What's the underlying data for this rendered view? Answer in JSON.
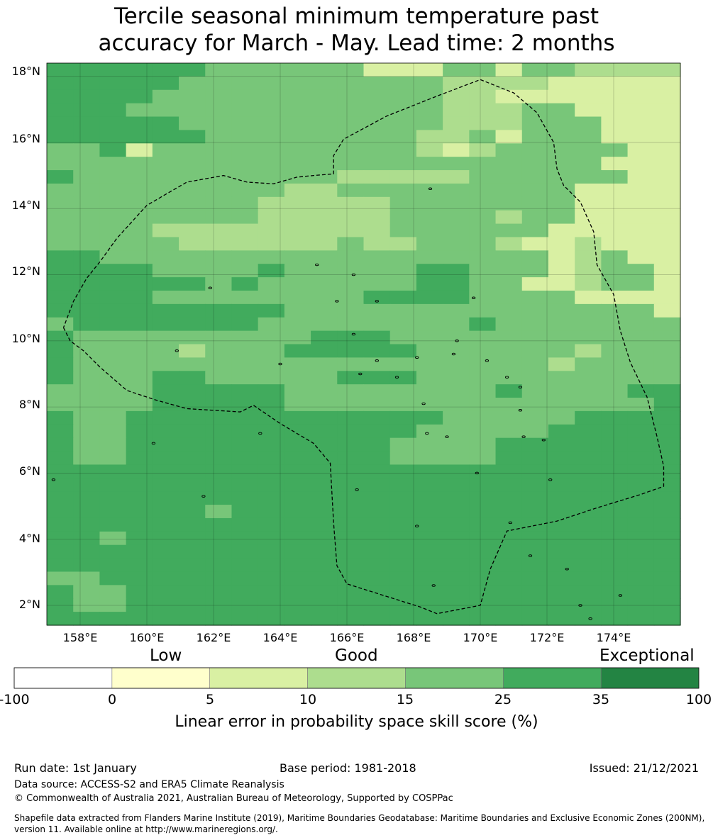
{
  "title": {
    "line1": "Tercile seasonal minimum temperature past",
    "line2": "accuracy for March - May. Lead time: 2 months"
  },
  "map": {
    "lon_range": [
      157,
      176
    ],
    "lat_range": [
      1.4,
      18.4
    ],
    "cell_size_deg": 0.833,
    "lat_ticks": [
      "18°N",
      "16°N",
      "14°N",
      "12°N",
      "10°N",
      "8°N",
      "6°N",
      "4°N",
      "2°N"
    ],
    "lon_ticks": [
      "158°E",
      "160°E",
      "162°E",
      "164°E",
      "166°E",
      "168°E",
      "170°E",
      "172°E",
      "174°E"
    ],
    "grid_rows_top_to_bottom": [
      "555555444444222442443333",
      "555554444444444333322222",
      "555544444444444332222222",
      "555444444444444333442222",
      "555554444444444333444222",
      "555555444444443342444222",
      "445244444444443234444422",
      "444444444444444444444222",
      "544444444443333344444422",
      "444444444334444444442222",
      "444444443333344444442222",
      "444444443333344443442222",
      "444433333333344444422222",
      "444443333334334443223222",
      "554444444444444444423422",
      "555544445444445544423442",
      "555555454444445544223442",
      "555544444444555544442222",
      "555555555444444444444442",
      "455555554444444454444444",
      "544444444455544444444444",
      "544443444555554444443444",
      "544444444444444444434444",
      "544455444445554444444444",
      "444455555444444445444455",
      "444455555444444444444445",
      "544555555555555444445555",
      "544555555555554444455555",
      "544555555555544445555555",
      "544555555555544445555555",
      "555555555555555555555555",
      "555555555555555555555555",
      "555555555555555555555555",
      "555555455555555555555555",
      "555555555555555555555555",
      "554555555555555555555555",
      "555555555555555555555555",
      "555555555555555555555555",
      "445555555555555555555555",
      "544555555555555555555555",
      "544555555555555555555555",
      "555555555555555555555555"
    ],
    "boundary_lonlat": [
      [
        157.5,
        10.4
      ],
      [
        157.7,
        10.0
      ],
      [
        158.1,
        9.7
      ],
      [
        158.6,
        9.2
      ],
      [
        159.4,
        8.5
      ],
      [
        160.3,
        8.2
      ],
      [
        161.2,
        7.95
      ],
      [
        162.8,
        7.85
      ],
      [
        163.2,
        8.05
      ],
      [
        164.0,
        7.5
      ],
      [
        165.0,
        6.9
      ],
      [
        165.5,
        6.3
      ],
      [
        165.6,
        4.5
      ],
      [
        165.7,
        3.2
      ],
      [
        166.0,
        2.65
      ],
      [
        167.1,
        2.3
      ],
      [
        168.2,
        1.95
      ],
      [
        168.7,
        1.75
      ],
      [
        170.0,
        2.0
      ],
      [
        170.3,
        3.1
      ],
      [
        170.8,
        4.25
      ],
      [
        172.3,
        4.55
      ],
      [
        173.5,
        4.95
      ],
      [
        174.8,
        5.35
      ],
      [
        175.5,
        5.6
      ],
      [
        175.5,
        6.2
      ],
      [
        175.3,
        7.1
      ],
      [
        175.0,
        8.3
      ],
      [
        174.5,
        9.35
      ],
      [
        174.2,
        10.3
      ],
      [
        174.0,
        11.4
      ],
      [
        173.5,
        12.3
      ],
      [
        173.4,
        13.3
      ],
      [
        173.0,
        14.2
      ],
      [
        172.5,
        14.7
      ],
      [
        172.3,
        15.2
      ],
      [
        172.2,
        16.0
      ],
      [
        171.7,
        16.9
      ],
      [
        171.0,
        17.5
      ],
      [
        170.0,
        17.9
      ],
      [
        168.7,
        17.4
      ],
      [
        167.2,
        16.8
      ],
      [
        165.9,
        16.1
      ],
      [
        165.6,
        15.6
      ],
      [
        165.6,
        15.05
      ],
      [
        165.0,
        15.0
      ],
      [
        164.5,
        14.95
      ],
      [
        163.8,
        14.75
      ],
      [
        163.0,
        14.8
      ],
      [
        162.3,
        15.0
      ],
      [
        161.2,
        14.8
      ],
      [
        160.0,
        14.1
      ],
      [
        159.1,
        13.1
      ],
      [
        158.6,
        12.4
      ],
      [
        158.2,
        11.9
      ],
      [
        157.8,
        11.2
      ],
      [
        157.5,
        10.4
      ]
    ],
    "islands_lonlat": [
      [
        160.2,
        6.9
      ],
      [
        161.7,
        5.3
      ],
      [
        166.3,
        5.5
      ],
      [
        168.1,
        4.4
      ],
      [
        168.6,
        2.6
      ],
      [
        169.0,
        7.1
      ],
      [
        169.9,
        6.0
      ],
      [
        171.3,
        7.1
      ],
      [
        171.9,
        7.0
      ],
      [
        172.6,
        3.1
      ],
      [
        173.0,
        2.0
      ],
      [
        173.3,
        1.6
      ],
      [
        165.1,
        12.3
      ],
      [
        166.2,
        12.0
      ],
      [
        166.9,
        11.2
      ],
      [
        168.5,
        14.6
      ],
      [
        169.8,
        11.3
      ],
      [
        169.3,
        10.0
      ],
      [
        170.2,
        9.4
      ],
      [
        171.2,
        8.6
      ],
      [
        171.2,
        7.9
      ],
      [
        168.3,
        8.1
      ],
      [
        167.5,
        8.9
      ],
      [
        166.9,
        9.4
      ],
      [
        166.4,
        9.0
      ],
      [
        164.0,
        9.3
      ],
      [
        161.9,
        11.6
      ],
      [
        165.7,
        11.2
      ],
      [
        160.9,
        9.7
      ],
      [
        157.2,
        5.8
      ],
      [
        163.4,
        7.2
      ],
      [
        172.1,
        5.8
      ],
      [
        170.9,
        4.5
      ],
      [
        171.5,
        3.5
      ],
      [
        174.2,
        2.3
      ],
      [
        168.4,
        7.2
      ],
      [
        169.2,
        9.6
      ],
      [
        166.2,
        10.2
      ],
      [
        170.8,
        8.9
      ],
      [
        168.1,
        9.5
      ]
    ]
  },
  "colorbar": {
    "top_labels": [
      "Low",
      "Good",
      "Exceptional"
    ],
    "boundaries": [
      "-100",
      "0",
      "5",
      "10",
      "15",
      "25",
      "35",
      "100"
    ],
    "colors": [
      "#ffffff",
      "#ffffcc",
      "#d9f0a3",
      "#addd8e",
      "#78c679",
      "#41ab5d",
      "#238443"
    ],
    "axis_label": "Linear error in probability space skill score (%)"
  },
  "footer": {
    "run_date": "Run date: 1st January",
    "base_period": "Base period: 1981-2018",
    "issued": "Issued: 21/12/2021",
    "data_source": "Data source: ACCESS-S2 and ERA5 Climate Reanalysis",
    "copyright": "© Commonwealth of Australia 2021, Australian Bureau of Meteorology, Supported by COSPPac",
    "shapefile": "Shapefile data extracted from Flanders Marine Institute (2019), Maritime Boundaries Geodatabase: Maritime Boundaries and Exclusive Economic Zones (200NM), version 11. Available online at http://www.marineregions.org/."
  }
}
